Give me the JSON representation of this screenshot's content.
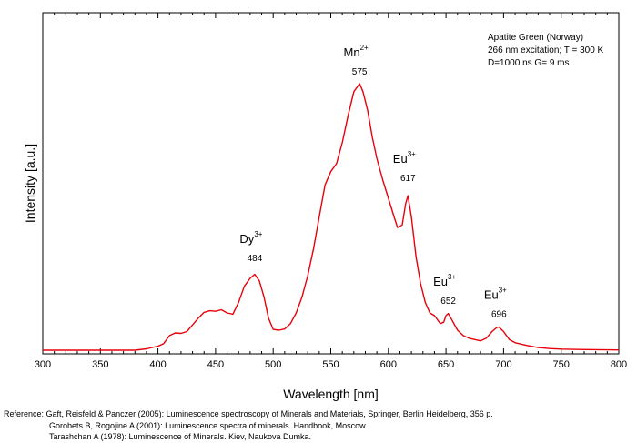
{
  "chart_data": {
    "type": "line",
    "title": "",
    "xlabel": "Wavelength [nm]",
    "ylabel": "Intensity [a.u.]",
    "xlim": [
      300,
      800
    ],
    "xticks": [
      300,
      350,
      400,
      450,
      500,
      550,
      600,
      650,
      700,
      750,
      800
    ],
    "ylim": [
      0,
      1.0
    ],
    "y_tick_labels_shown": false,
    "grid": false,
    "line_color": "#e8000b",
    "info_box": {
      "position": "top-right",
      "lines": [
        "Apatite Green (Norway)",
        "266 nm excitation; T = 300 K",
        "D=1000 ns G= 9 ms"
      ]
    },
    "annotations": [
      {
        "ion": "Dy",
        "charge": "3+",
        "peak": "484",
        "x": 484,
        "y": 0.3
      },
      {
        "ion": "Mn",
        "charge": "2+",
        "peak": "575",
        "x": 575,
        "y": 1.0
      },
      {
        "ion": "Eu",
        "charge": "3+",
        "peak": "617",
        "x": 617,
        "y": 0.6
      },
      {
        "ion": "Eu",
        "charge": "3+",
        "peak": "652",
        "x": 652,
        "y": 0.14
      },
      {
        "ion": "Eu",
        "charge": "3+",
        "peak": "696",
        "x": 696,
        "y": 0.09
      }
    ],
    "series": [
      {
        "points": [
          [
            300,
            0.0
          ],
          [
            350,
            0.0
          ],
          [
            380,
            0.0
          ],
          [
            390,
            0.005
          ],
          [
            400,
            0.015
          ],
          [
            405,
            0.025
          ],
          [
            410,
            0.055
          ],
          [
            415,
            0.065
          ],
          [
            420,
            0.063
          ],
          [
            425,
            0.07
          ],
          [
            430,
            0.095
          ],
          [
            435,
            0.12
          ],
          [
            440,
            0.142
          ],
          [
            445,
            0.148
          ],
          [
            450,
            0.146
          ],
          [
            455,
            0.152
          ],
          [
            460,
            0.14
          ],
          [
            465,
            0.135
          ],
          [
            470,
            0.18
          ],
          [
            475,
            0.24
          ],
          [
            480,
            0.27
          ],
          [
            484,
            0.285
          ],
          [
            488,
            0.26
          ],
          [
            492,
            0.2
          ],
          [
            496,
            0.12
          ],
          [
            500,
            0.078
          ],
          [
            505,
            0.075
          ],
          [
            510,
            0.08
          ],
          [
            515,
            0.1
          ],
          [
            520,
            0.14
          ],
          [
            525,
            0.2
          ],
          [
            530,
            0.28
          ],
          [
            535,
            0.38
          ],
          [
            540,
            0.5
          ],
          [
            545,
            0.62
          ],
          [
            550,
            0.67
          ],
          [
            555,
            0.7
          ],
          [
            560,
            0.78
          ],
          [
            565,
            0.88
          ],
          [
            570,
            0.97
          ],
          [
            575,
            1.0
          ],
          [
            578,
            0.97
          ],
          [
            582,
            0.9
          ],
          [
            586,
            0.8
          ],
          [
            590,
            0.72
          ],
          [
            595,
            0.64
          ],
          [
            600,
            0.57
          ],
          [
            605,
            0.5
          ],
          [
            608,
            0.46
          ],
          [
            612,
            0.47
          ],
          [
            615,
            0.55
          ],
          [
            617,
            0.58
          ],
          [
            620,
            0.5
          ],
          [
            624,
            0.35
          ],
          [
            628,
            0.25
          ],
          [
            632,
            0.18
          ],
          [
            636,
            0.14
          ],
          [
            640,
            0.13
          ],
          [
            645,
            0.1
          ],
          [
            648,
            0.105
          ],
          [
            650,
            0.13
          ],
          [
            652,
            0.138
          ],
          [
            655,
            0.115
          ],
          [
            660,
            0.075
          ],
          [
            665,
            0.055
          ],
          [
            670,
            0.045
          ],
          [
            675,
            0.04
          ],
          [
            680,
            0.035
          ],
          [
            685,
            0.045
          ],
          [
            690,
            0.07
          ],
          [
            694,
            0.085
          ],
          [
            696,
            0.087
          ],
          [
            700,
            0.07
          ],
          [
            705,
            0.04
          ],
          [
            710,
            0.028
          ],
          [
            720,
            0.018
          ],
          [
            730,
            0.01
          ],
          [
            740,
            0.006
          ],
          [
            750,
            0.004
          ],
          [
            760,
            0.003
          ],
          [
            780,
            0.002
          ],
          [
            800,
            0.001
          ]
        ]
      }
    ]
  },
  "references": {
    "prefix": "Reference:",
    "lines": [
      "Gaft, Reisfeld & Panczer (2005): Luminescence spectroscopy of Minerals and Materials, Springer, Berlin Heidelberg, 356 p.",
      "Gorobets B, Rogojine A (2001): Luminescence spectra of minerals. Handbook, Moscow.",
      "Tarashchan A (1978): Luminescence of Minerals. Kiev, Naukova Dumka."
    ]
  }
}
